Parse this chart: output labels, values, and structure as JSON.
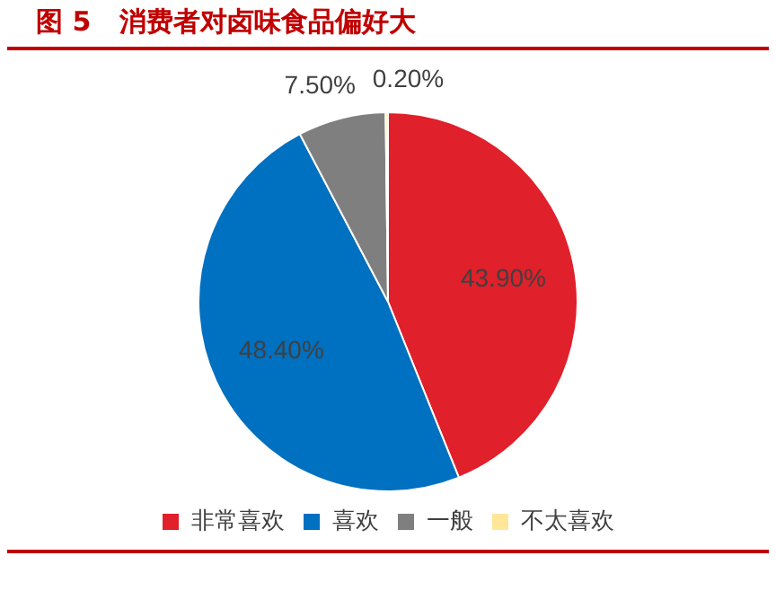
{
  "chart_data": {
    "type": "pie",
    "title": "图 5   消费者对卤味食品偏好大",
    "categories": [
      "非常喜欢",
      "喜欢",
      "一般",
      "不太喜欢"
    ],
    "values": [
      43.9,
      48.4,
      7.5,
      0.2
    ],
    "value_labels": [
      "43.90%",
      "48.40%",
      "7.50%",
      "0.20%"
    ],
    "colors": [
      "#e0202a",
      "#0070c0",
      "#7f7f7f",
      "#ffe699"
    ],
    "legend": "bottom"
  }
}
